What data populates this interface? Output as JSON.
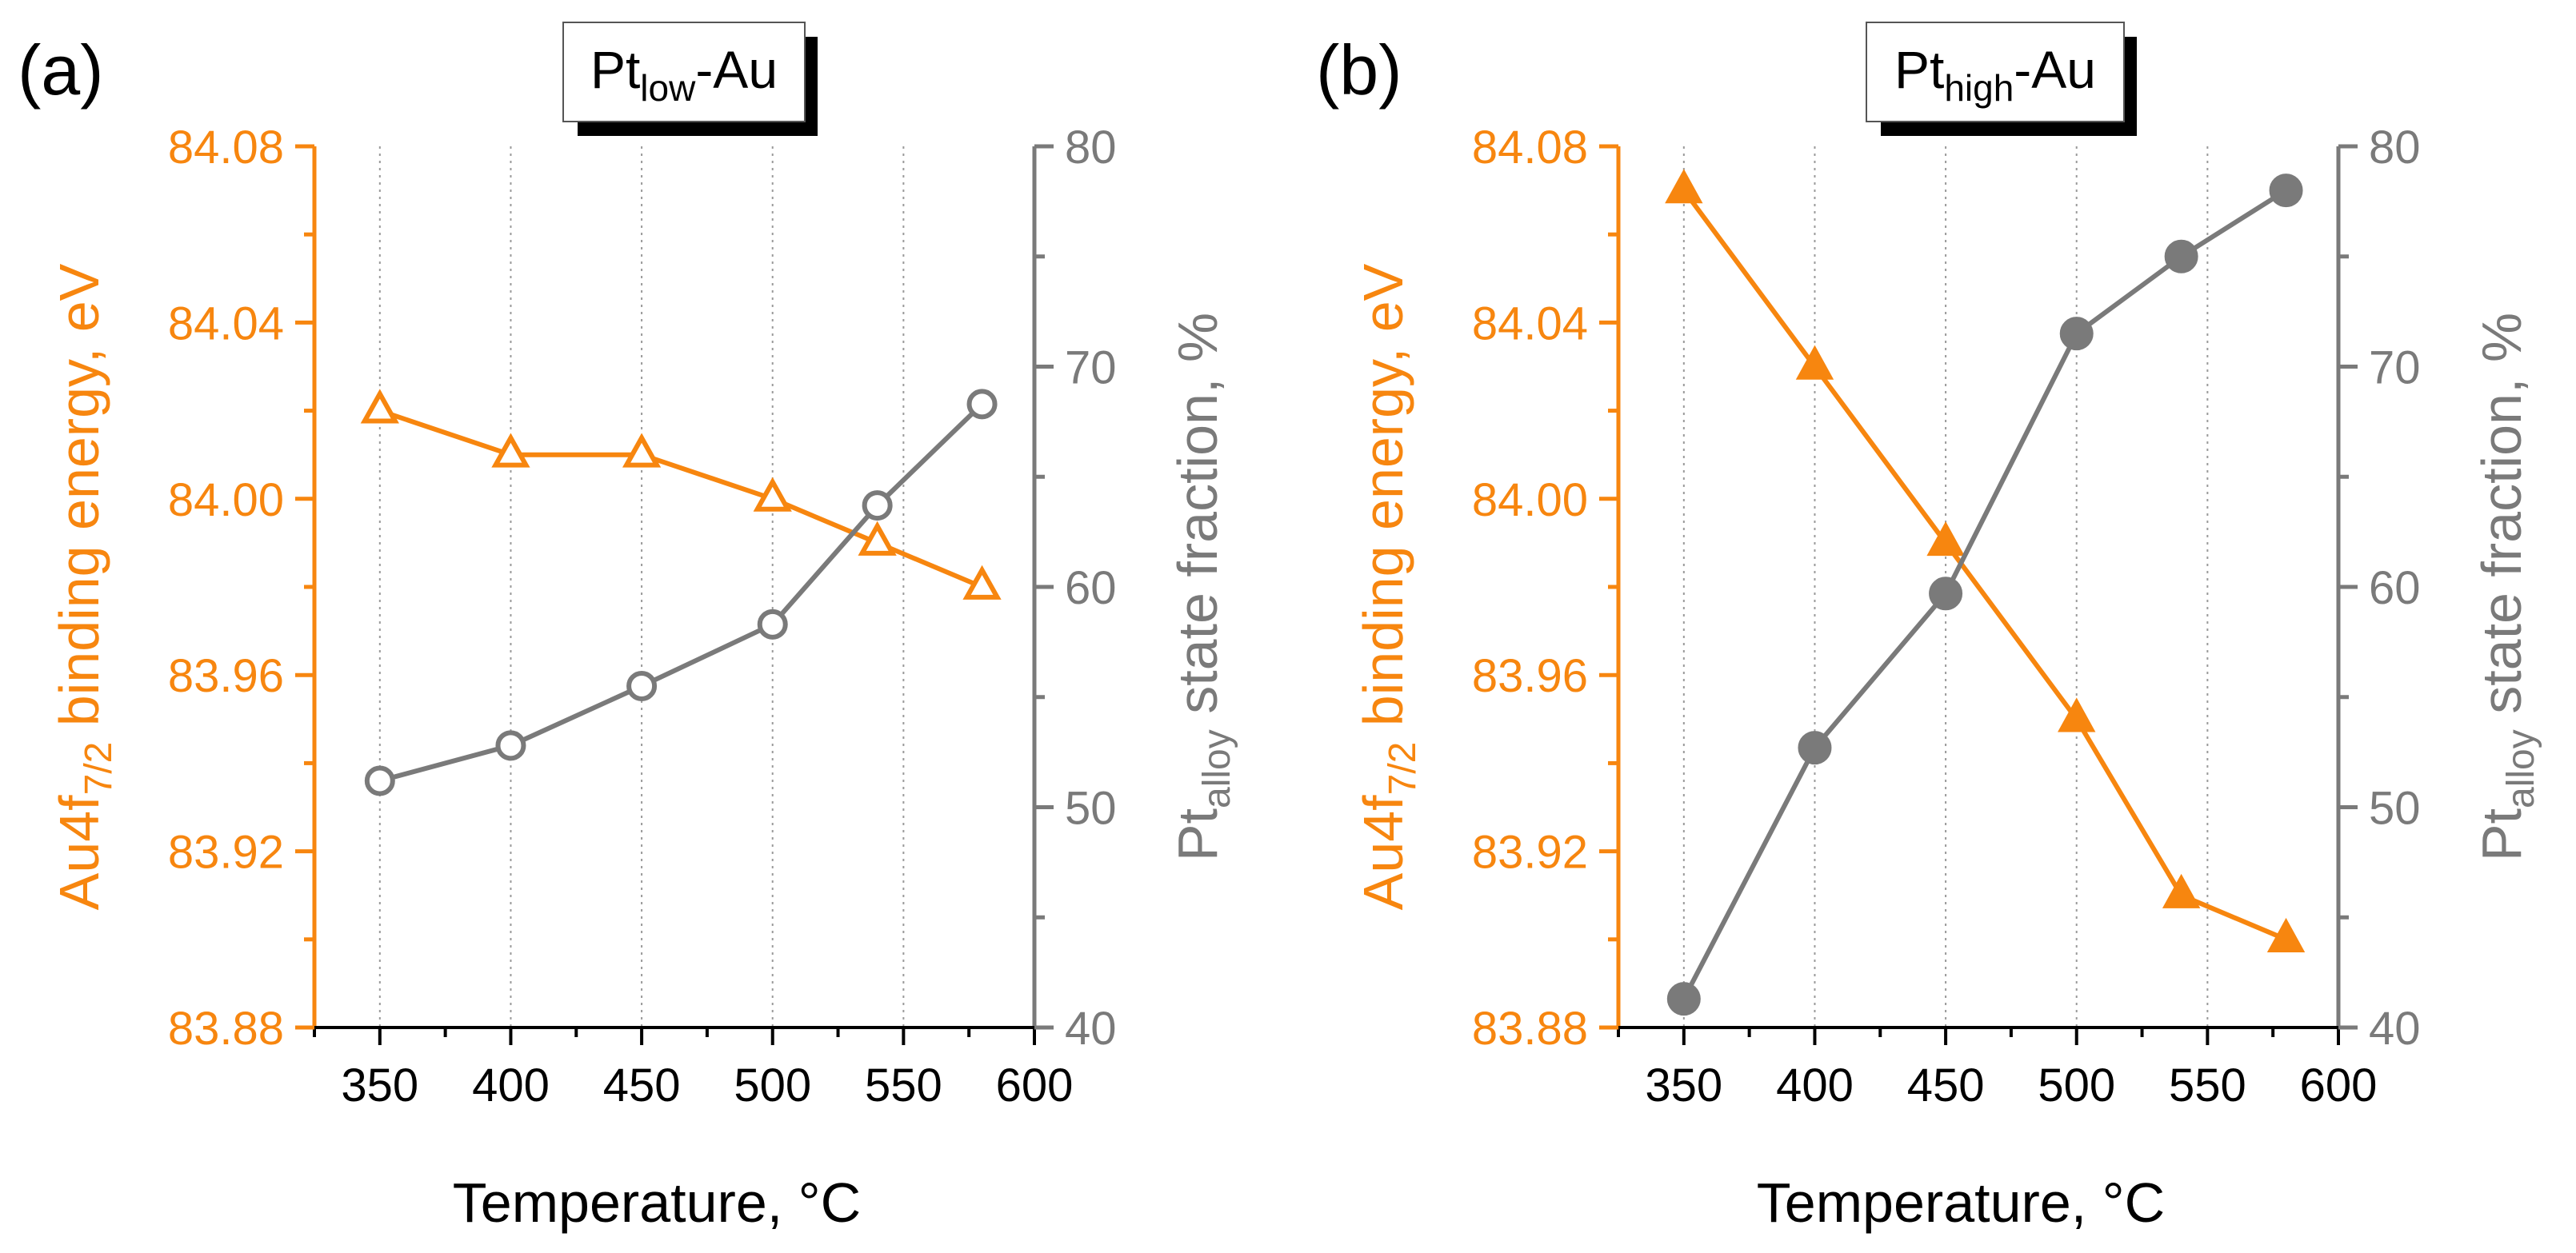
{
  "colors": {
    "orange": "#f7860f",
    "gray": "#7a7a7a",
    "grid": "#9a9a9a",
    "black": "#000000"
  },
  "chart_data": [
    {
      "type": "line",
      "panel_label": "(a)",
      "title": {
        "main": "Pt",
        "sub": "low",
        "rest": "-Au"
      },
      "xlabel": "Temperature, °C",
      "xlim": [
        325,
        600
      ],
      "xticks": [
        350,
        400,
        450,
        500,
        550,
        600
      ],
      "xtick_labels": [
        "350",
        "400",
        "450",
        "500",
        "550",
        "600"
      ],
      "grid": "vertical dotted lines at 350, 400, 450, 500, 550",
      "y_left": {
        "label": {
          "main": "Au4f",
          "sub": "7/2",
          "rest": " binding energy, eV"
        },
        "ylim": [
          83.88,
          84.08
        ],
        "ticks": [
          83.88,
          83.92,
          83.96,
          84.0,
          84.04,
          84.08
        ],
        "tick_labels": [
          "83.88",
          "83.92",
          "83.96",
          "84.00",
          "84.04",
          "84.08"
        ]
      },
      "y_right": {
        "label": {
          "main": "Pt",
          "sub": "alloy",
          "rest": " state fraction, %"
        },
        "ylim": [
          40,
          80
        ],
        "ticks": [
          40,
          50,
          60,
          70,
          80
        ],
        "tick_labels": [
          "40",
          "50",
          "60",
          "70",
          "80"
        ]
      },
      "series": [
        {
          "name": "Au4f7/2 binding energy",
          "axis": "left",
          "marker": "triangle-open",
          "color": "#f7860f",
          "x": [
            350,
            400,
            450,
            500,
            540,
            580
          ],
          "values": [
            84.02,
            84.01,
            84.01,
            84.0,
            83.99,
            83.98
          ]
        },
        {
          "name": "Pt alloy state fraction",
          "axis": "right",
          "marker": "circle-open",
          "color": "#7a7a7a",
          "x": [
            350,
            400,
            450,
            500,
            540,
            580
          ],
          "values": [
            51.2,
            52.8,
            55.5,
            58.3,
            63.7,
            68.3
          ]
        }
      ]
    },
    {
      "type": "line",
      "panel_label": "(b)",
      "title": {
        "main": "Pt",
        "sub": "high",
        "rest": "-Au"
      },
      "xlabel": "Temperature, °C",
      "xlim": [
        325,
        600
      ],
      "xticks": [
        350,
        400,
        450,
        500,
        550,
        600
      ],
      "xtick_labels": [
        "350",
        "400",
        "450",
        "500",
        "550",
        "600"
      ],
      "grid": "vertical dotted lines at 350, 400, 450, 500, 550",
      "y_left": {
        "label": {
          "main": "Au4f",
          "sub": "7/2",
          "rest": " binding energy, eV"
        },
        "ylim": [
          83.88,
          84.08
        ],
        "ticks": [
          83.88,
          83.92,
          83.96,
          84.0,
          84.04,
          84.08
        ],
        "tick_labels": [
          "83.88",
          "83.92",
          "83.96",
          "84.00",
          "84.04",
          "84.08"
        ]
      },
      "y_right": {
        "label": {
          "main": "Pt",
          "sub": "alloy",
          "rest": " state fraction, %"
        },
        "ylim": [
          40,
          80
        ],
        "ticks": [
          40,
          50,
          60,
          70,
          80
        ],
        "tick_labels": [
          "40",
          "50",
          "60",
          "70",
          "80"
        ]
      },
      "series": [
        {
          "name": "Au4f7/2 binding energy",
          "axis": "left",
          "marker": "triangle-filled",
          "color": "#f7860f",
          "x": [
            350,
            400,
            450,
            500,
            540,
            580
          ],
          "values": [
            84.07,
            84.03,
            83.99,
            83.95,
            83.91,
            83.9
          ]
        },
        {
          "name": "Pt alloy state fraction",
          "axis": "right",
          "marker": "circle-filled",
          "color": "#7a7a7a",
          "x": [
            350,
            400,
            450,
            500,
            540,
            580
          ],
          "values": [
            41.3,
            52.7,
            59.7,
            71.5,
            75.0,
            78.0
          ]
        }
      ]
    }
  ]
}
